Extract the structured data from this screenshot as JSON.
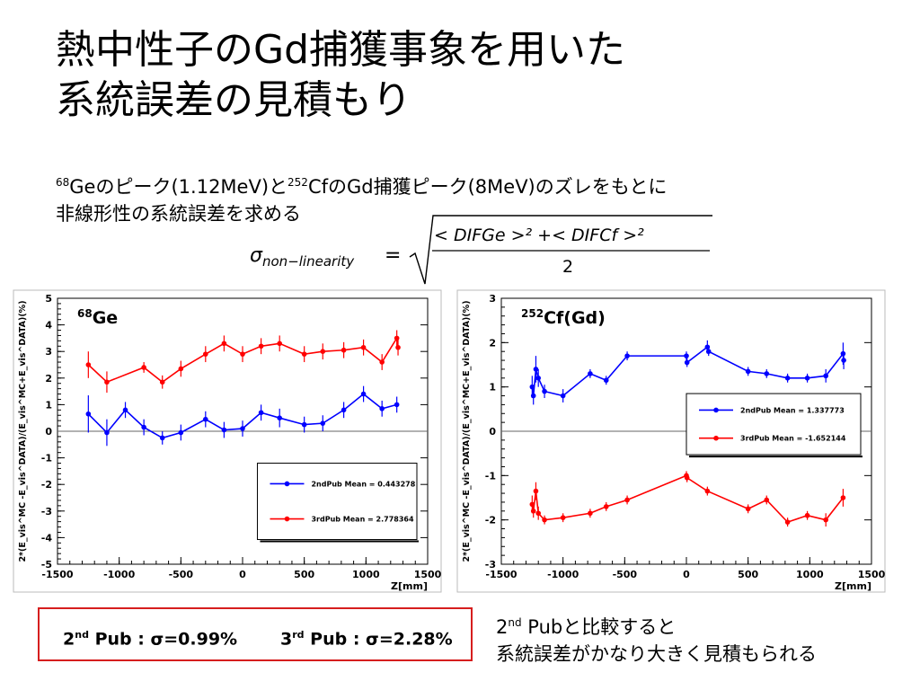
{
  "slide": {
    "title_line1": "熱中性子のGd捕獲事象を用いた",
    "title_line2": "系統誤差の見積もり",
    "desc_sup1": "68",
    "desc_a": "Geのピーク(1.12MeV)と",
    "desc_sup2": "252",
    "desc_b": "CfのGd捕獲ピーク(8MeV)のズレをもとに",
    "desc_line2": "非線形性の系統誤差を求める",
    "formula_lhs": "σ",
    "formula_lhs_sub": "non−linearity",
    "formula_eq": "=",
    "formula_num": "< DIFGe >² +< DIFCf >²",
    "formula_den": "2",
    "mean_box": {
      "item1_sup": "nd",
      "item1_pre": "2",
      "item1_rest": " Pub : σ=0.99%",
      "item2_sup": "rd",
      "item2_pre": "3",
      "item2_rest": " Pub : σ=2.28%"
    },
    "comparison": {
      "line1_pre": "2",
      "line1_sup": "nd",
      "line1_rest": " Pubと比較すると",
      "line2": "系統誤差がかなり大きく見積もられる"
    }
  },
  "chart_data": [
    {
      "type": "line",
      "label_sup": "68",
      "label": "Ge",
      "xlabel": "Z[mm]",
      "ylabel": "2*(E_vis^MC -E_vis^DATA)/(E_vis^MC+E_vis^DATA)(%)",
      "xlim": [
        -1500,
        1500
      ],
      "ylim": [
        -5,
        5
      ],
      "xticks": [
        -1500,
        -1000,
        -500,
        0,
        500,
        1000,
        1500
      ],
      "yticks": [
        -5,
        -4,
        -3,
        -2,
        -1,
        0,
        1,
        2,
        3,
        4,
        5
      ],
      "legend_position": "bottom-right",
      "grid": false,
      "series": [
        {
          "name": "2ndPub Mean = 0.443278",
          "color": "#0000ff",
          "x": [
            -1250,
            -1100,
            -950,
            -800,
            -650,
            -500,
            -300,
            -150,
            0,
            150,
            300,
            500,
            650,
            820,
            980,
            1130,
            1250
          ],
          "y": [
            0.65,
            -0.05,
            0.8,
            0.15,
            -0.25,
            -0.05,
            0.45,
            0.05,
            0.1,
            0.7,
            0.5,
            0.25,
            0.3,
            0.8,
            1.4,
            0.85,
            1.0
          ],
          "err": [
            0.7,
            0.5,
            0.3,
            0.3,
            0.25,
            0.3,
            0.3,
            0.3,
            0.3,
            0.3,
            0.35,
            0.3,
            0.3,
            0.3,
            0.3,
            0.3,
            0.3
          ]
        },
        {
          "name": "3rdPub Mean = 2.778364",
          "color": "#ff0000",
          "x": [
            -1250,
            -1100,
            -800,
            -650,
            -500,
            -300,
            -150,
            0,
            150,
            300,
            500,
            650,
            820,
            980,
            1130,
            1250,
            1260
          ],
          "y": [
            2.5,
            1.85,
            2.4,
            1.85,
            2.35,
            2.9,
            3.3,
            2.9,
            3.2,
            3.3,
            2.9,
            3.0,
            3.05,
            3.15,
            2.6,
            3.5,
            3.15
          ],
          "err": [
            0.5,
            0.4,
            0.2,
            0.25,
            0.3,
            0.3,
            0.3,
            0.3,
            0.3,
            0.3,
            0.3,
            0.3,
            0.3,
            0.3,
            0.3,
            0.3,
            0.3
          ]
        }
      ]
    },
    {
      "type": "line",
      "label_sup": "252",
      "label": "Cf(Gd)",
      "xlabel": "Z[mm]",
      "ylabel": "2*(E_vis^MC -E_vis^DATA)/(E_vis^MC+E_vis^DATA)(%)",
      "xlim": [
        -1500,
        1500
      ],
      "ylim": [
        -3,
        3
      ],
      "xticks": [
        -1500,
        -1000,
        -500,
        0,
        500,
        1000,
        1500
      ],
      "yticks": [
        -3,
        -2,
        -1,
        0,
        1,
        2,
        3
      ],
      "legend_position": "center-right",
      "grid": false,
      "series": [
        {
          "name": "2ndPub Mean = 1.337773",
          "color": "#0000ff",
          "x": [
            -1250,
            -1240,
            -1220,
            -1200,
            -1150,
            -1000,
            -780,
            -650,
            -480,
            0,
            5,
            170,
            180,
            500,
            650,
            820,
            980,
            1130,
            1270,
            1275
          ],
          "y": [
            1.0,
            0.8,
            1.4,
            1.2,
            0.9,
            0.8,
            1.3,
            1.15,
            1.7,
            1.7,
            1.55,
            1.9,
            1.8,
            1.35,
            1.3,
            1.2,
            1.2,
            1.25,
            1.75,
            1.6
          ],
          "err": [
            0.25,
            0.2,
            0.3,
            0.2,
            0.15,
            0.15,
            0.1,
            0.1,
            0.1,
            0.1,
            0.1,
            0.15,
            0.1,
            0.1,
            0.1,
            0.1,
            0.1,
            0.15,
            0.25,
            0.2
          ]
        },
        {
          "name": "3rdPub Mean = -1.652144",
          "color": "#ff0000",
          "x": [
            -1250,
            -1240,
            -1220,
            -1200,
            -1150,
            -1000,
            -780,
            -650,
            -480,
            0,
            5,
            170,
            500,
            650,
            820,
            980,
            1130,
            1270
          ],
          "y": [
            -1.65,
            -1.8,
            -1.35,
            -1.85,
            -2.0,
            -1.95,
            -1.85,
            -1.7,
            -1.55,
            -1.0,
            -1.05,
            -1.35,
            -1.75,
            -1.55,
            -2.05,
            -1.9,
            -2.0,
            -1.5
          ],
          "err": [
            0.2,
            0.15,
            0.2,
            0.15,
            0.1,
            0.1,
            0.1,
            0.1,
            0.1,
            0.1,
            0.1,
            0.1,
            0.1,
            0.1,
            0.1,
            0.1,
            0.15,
            0.2
          ]
        }
      ]
    }
  ]
}
